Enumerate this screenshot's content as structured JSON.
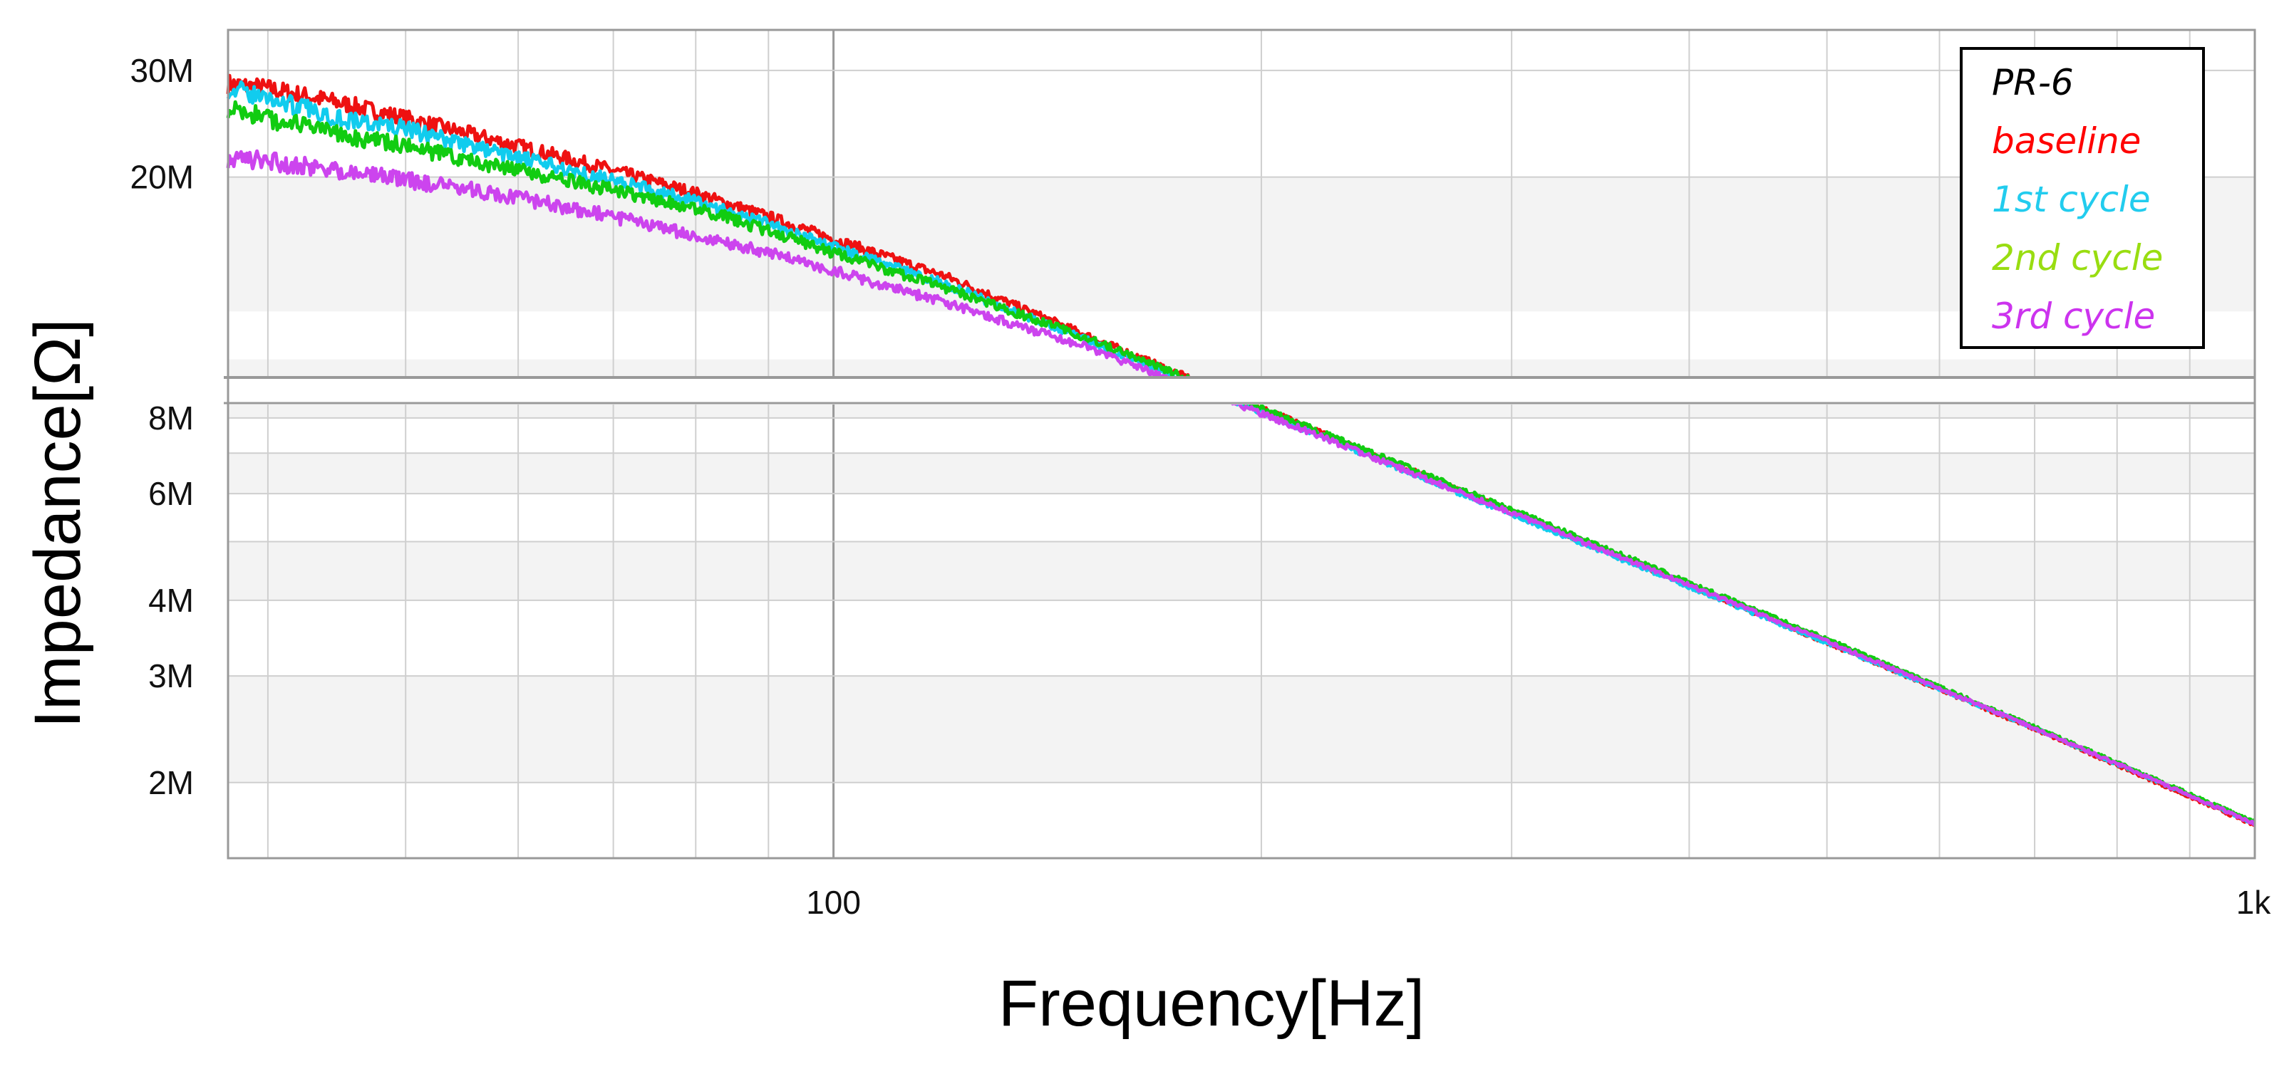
{
  "chart_data": {
    "type": "line",
    "title": "",
    "xlabel": "Frequency[Hz]",
    "ylabel": "Impedance[Ω]",
    "x_scale": "log",
    "y_scale": "log",
    "xlim": [
      37.5,
      1000
    ],
    "ylim": [
      1500000,
      35000000
    ],
    "x_ticks": [
      {
        "value": 100,
        "label": "100"
      },
      {
        "value": 1000,
        "label": "1k"
      }
    ],
    "y_ticks": [
      {
        "value": 2000000,
        "label": "2M"
      },
      {
        "value": 3000000,
        "label": "3M"
      },
      {
        "value": 4000000,
        "label": "4M"
      },
      {
        "value": 6000000,
        "label": "6M"
      },
      {
        "value": 8000000,
        "label": "8M"
      },
      {
        "value": 20000000,
        "label": "20M"
      },
      {
        "value": 30000000,
        "label": "30M"
      }
    ],
    "grid": true,
    "legend": {
      "placement": "top-right",
      "title": "PR-6",
      "title_color": "#000000"
    },
    "series": [
      {
        "name": "baseline",
        "color": "#ee1111",
        "legend_color": "#ff0000",
        "x": [
          37.5,
          40,
          45,
          50,
          60,
          70,
          80,
          90,
          100,
          120,
          150,
          200,
          300,
          500,
          700,
          1000
        ],
        "y": [
          28500000,
          28000000,
          26500000,
          25000000,
          22500000,
          20500000,
          18800000,
          17200000,
          15800000,
          13700000,
          11000000,
          8300000,
          5600000,
          3400000,
          2450000,
          1700000
        ]
      },
      {
        "name": "1st cycle",
        "color": "#11ccee",
        "legend_color": "#22ccee",
        "x": [
          37.5,
          40,
          45,
          50,
          60,
          70,
          80,
          90,
          100,
          120,
          150,
          200,
          300,
          500,
          700,
          1000
        ],
        "y": [
          28000000,
          27000000,
          25000000,
          24000000,
          21500000,
          19800000,
          18200000,
          16800000,
          15300000,
          13300000,
          10800000,
          8200000,
          5550000,
          3400000,
          2460000,
          1710000
        ]
      },
      {
        "name": "2nd cycle",
        "color": "#11cc11",
        "legend_color": "#99dd11",
        "x": [
          37.5,
          40,
          45,
          50,
          60,
          70,
          80,
          90,
          100,
          120,
          150,
          200,
          300,
          500,
          700,
          1000
        ],
        "y": [
          26000000,
          25000000,
          23500000,
          22500000,
          20500000,
          19000000,
          17800000,
          16300000,
          15000000,
          13100000,
          10900000,
          8300000,
          5650000,
          3450000,
          2470000,
          1720000
        ]
      },
      {
        "name": "3rd cycle",
        "color": "#cc44ee",
        "legend_color": "#cc33ee",
        "x": [
          37.5,
          40,
          45,
          50,
          60,
          70,
          80,
          90,
          100,
          120,
          150,
          200,
          300,
          500,
          700,
          1000
        ],
        "y": [
          21500000,
          21200000,
          20500000,
          19800000,
          18500000,
          17200000,
          16000000,
          15000000,
          14000000,
          12400000,
          10500000,
          8150000,
          5580000,
          3420000,
          2460000,
          1710000
        ]
      }
    ]
  }
}
